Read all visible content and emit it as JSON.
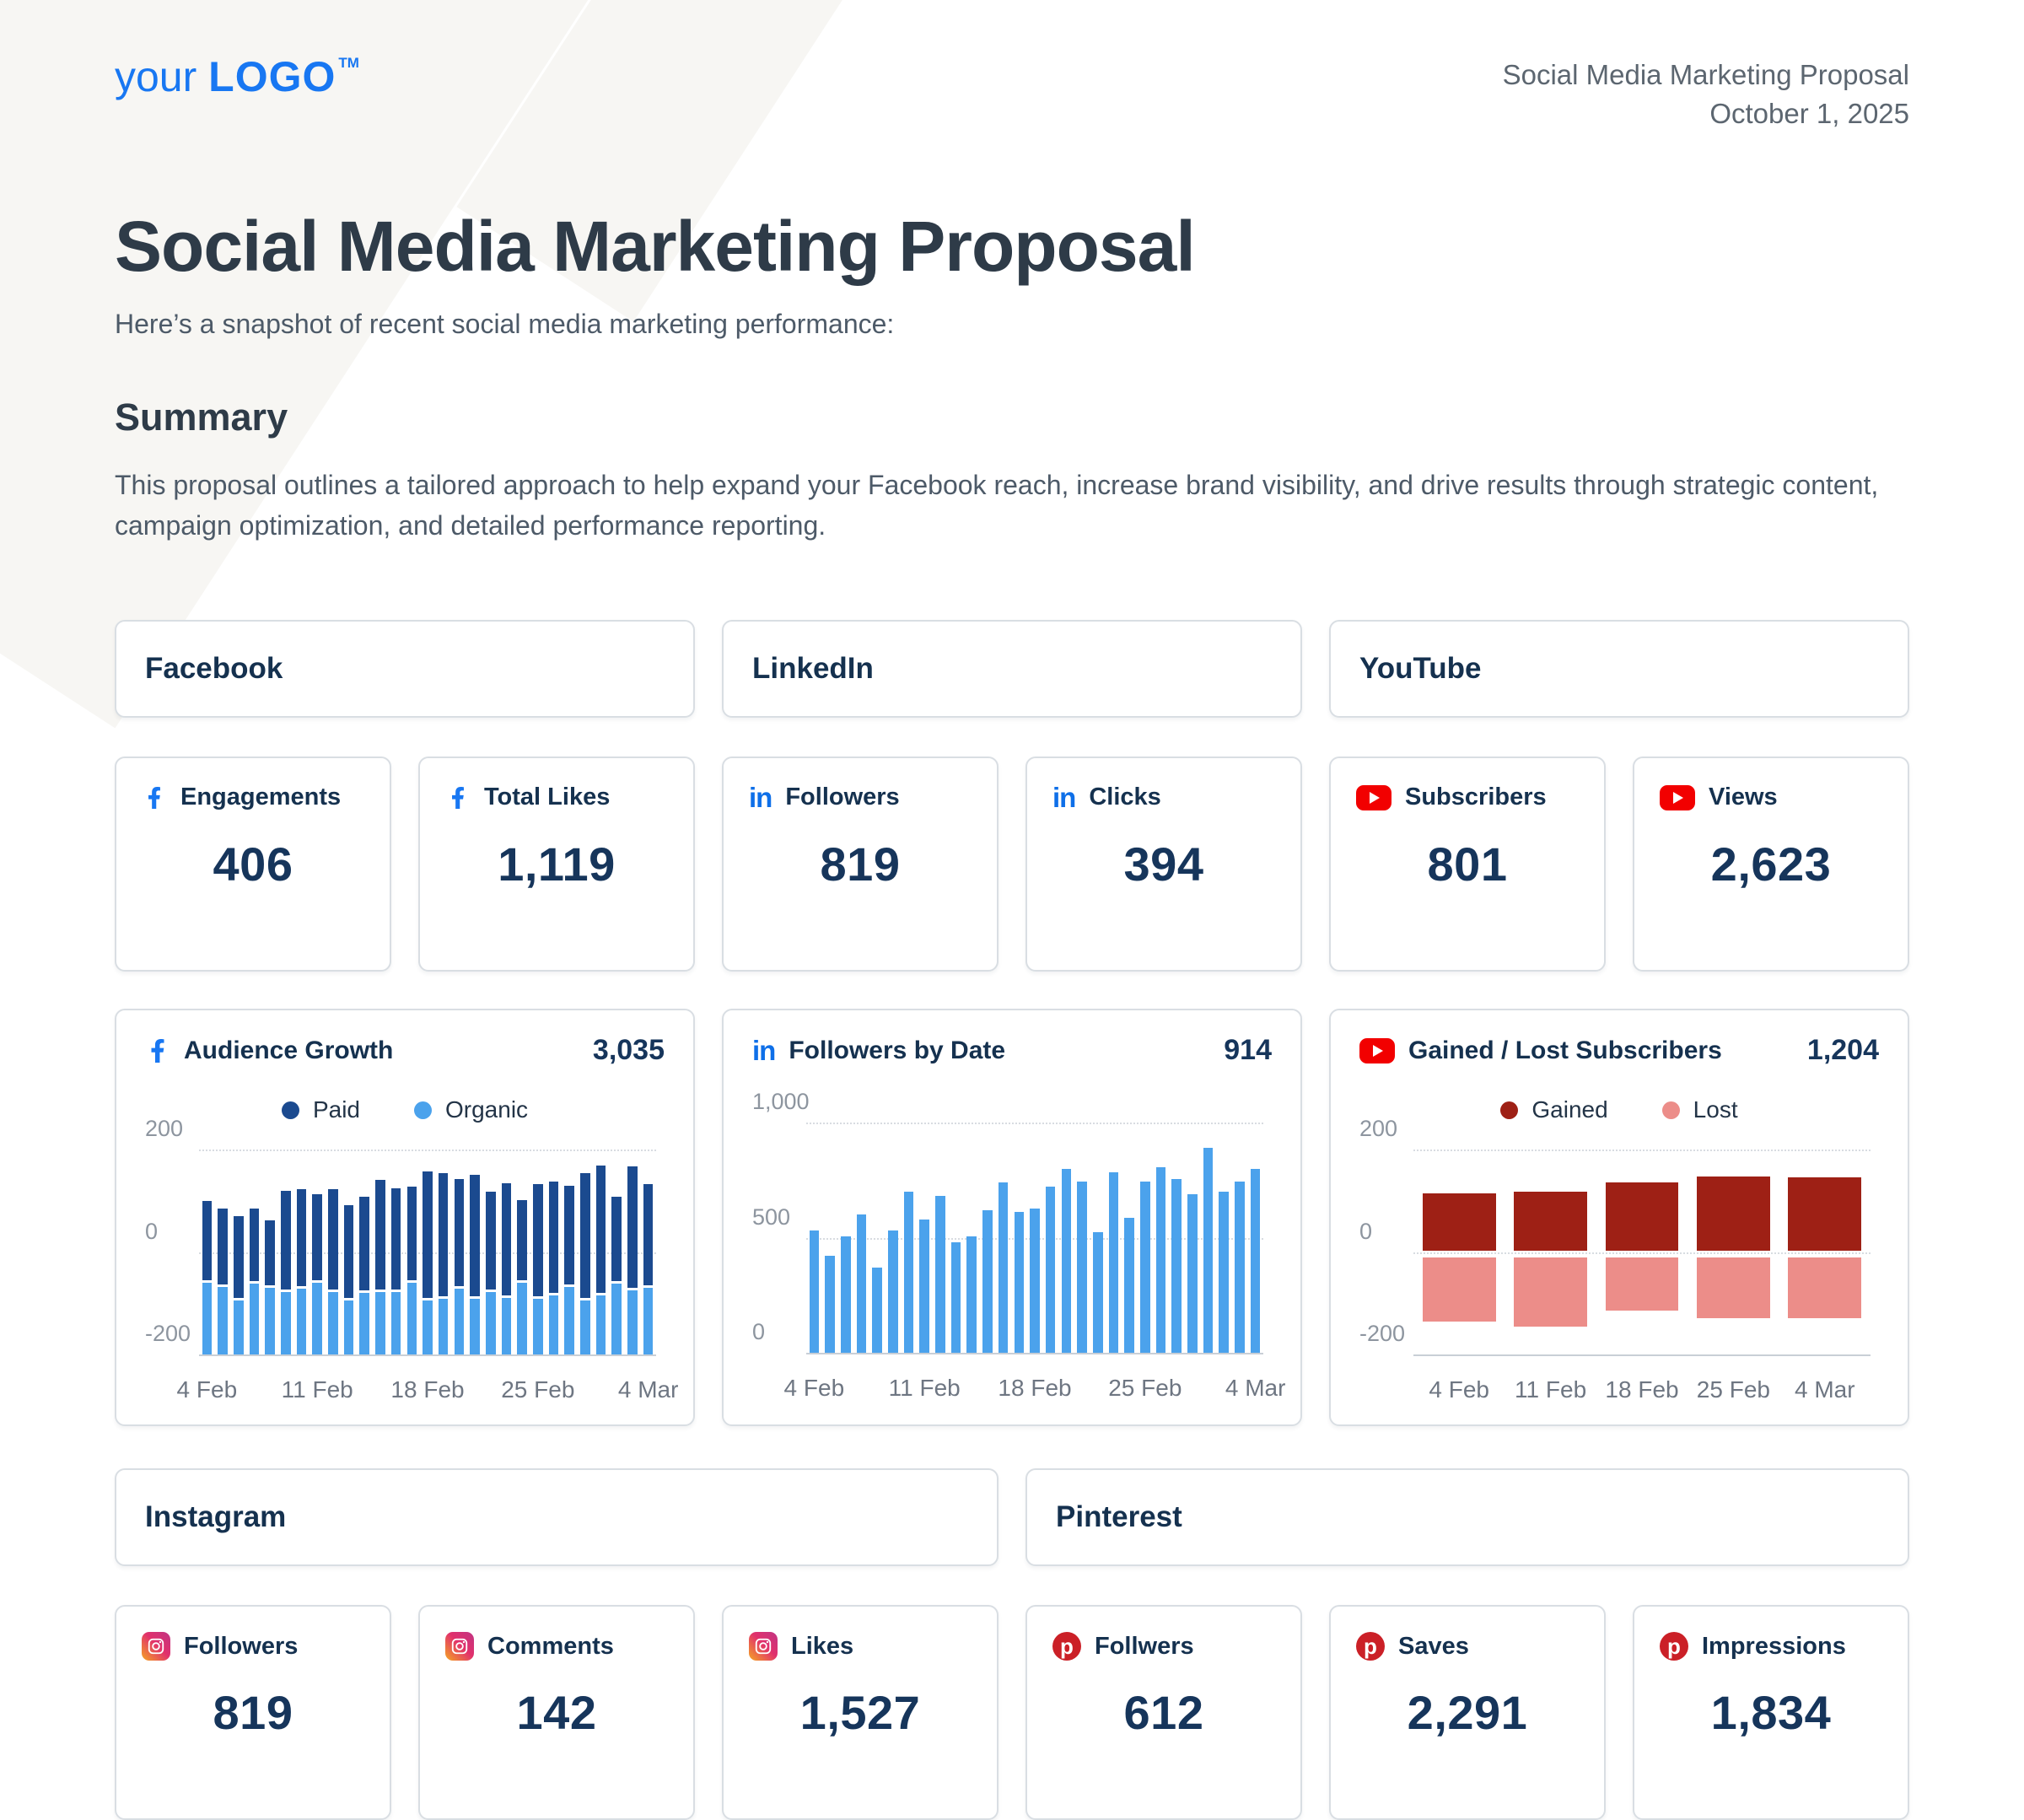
{
  "brand": {
    "logo_prefix": "your",
    "logo_word": "LOGO",
    "logo_tm": "TM"
  },
  "doc_header": {
    "title": "Social Media Marketing Proposal",
    "date": "October 1, 2025"
  },
  "intro": {
    "title": "Social Media Marketing Proposal",
    "subtitle": "Here’s a snapshot of recent social media marketing performance:"
  },
  "summary": {
    "heading": "Summary",
    "body": "This proposal outlines a tailored approach to help expand your Facebook reach, increase brand visibility, and drive results through strategic content, campaign optimization, and detailed performance reporting."
  },
  "icons": {
    "linkedin_glyph": "in",
    "pinterest_glyph": "p"
  },
  "platform_sections": [
    {
      "label": "Facebook"
    },
    {
      "label": "LinkedIn"
    },
    {
      "label": "YouTube"
    },
    {
      "label": "Instagram"
    },
    {
      "label": "Pinterest"
    }
  ],
  "stat_cards_top": [
    {
      "platform": "facebook",
      "label": "Engagements",
      "value": "406"
    },
    {
      "platform": "facebook",
      "label": "Total Likes",
      "value": "1,119"
    },
    {
      "platform": "linkedin",
      "label": "Followers",
      "value": "819"
    },
    {
      "platform": "linkedin",
      "label": "Clicks",
      "value": "394"
    },
    {
      "platform": "youtube",
      "label": "Subscribers",
      "value": "801"
    },
    {
      "platform": "youtube",
      "label": "Views",
      "value": "2,623"
    }
  ],
  "stat_cards_bottom": [
    {
      "platform": "instagram",
      "label": "Followers",
      "value": "819"
    },
    {
      "platform": "instagram",
      "label": "Comments",
      "value": "142"
    },
    {
      "platform": "instagram",
      "label": "Likes",
      "value": "1,527"
    },
    {
      "platform": "pinterest",
      "label": "Follwers",
      "value": "612"
    },
    {
      "platform": "pinterest",
      "label": "Saves",
      "value": "2,291"
    },
    {
      "platform": "pinterest",
      "label": "Impressions",
      "value": "1,834"
    }
  ],
  "chart_data": [
    {
      "type": "bar",
      "variant": "stacked_posneg",
      "platform": "facebook",
      "title": "Audience Growth",
      "total": "3,035",
      "legend": [
        "Paid",
        "Organic"
      ],
      "series_colors": [
        "#1B4A8F",
        "#4BA2EC"
      ],
      "ylim": [
        -200,
        200
      ],
      "yticks": [
        {
          "label": "200",
          "v": 200
        },
        {
          "label": "0",
          "v": 0
        },
        {
          "label": "-200",
          "v": -200,
          "solid": true
        }
      ],
      "x_count": 29,
      "xticks": [
        "4 Feb",
        "11 Feb",
        "18 Feb",
        "25 Feb",
        "4 Mar"
      ],
      "tick_index": [
        0,
        7,
        14,
        21,
        28
      ],
      "stack_base": -200,
      "note": "Paid values are bar top edges; Organic values are the segment boundary; stack base is -200.",
      "series": [
        {
          "name": "Paid",
          "values": [
            100,
            85,
            70,
            85,
            62,
            120,
            122,
            112,
            122,
            92,
            108,
            140,
            125,
            128,
            158,
            154,
            143,
            150,
            118,
            134,
            101,
            132,
            138,
            129,
            154,
            168,
            108,
            167,
            133
          ]
        },
        {
          "name": "Organic",
          "values": [
            -60,
            -68,
            -95,
            -62,
            -70,
            -78,
            -72,
            -60,
            -78,
            -95,
            -80,
            -78,
            -78,
            -60,
            -95,
            -91,
            -72,
            -91,
            -79,
            -90,
            -60,
            -91,
            -85,
            -69,
            -94,
            -85,
            -62,
            -75,
            -70
          ]
        }
      ]
    },
    {
      "type": "bar",
      "variant": "simple",
      "platform": "linkedin",
      "title": "Followers by Date",
      "total": "914",
      "series_colors": [
        "#4BA2EC"
      ],
      "ylim": [
        0,
        1000
      ],
      "yticks": [
        {
          "label": "1,000",
          "v": 1000
        },
        {
          "label": "500",
          "v": 500
        },
        {
          "label": "0",
          "v": 0,
          "solid": true
        }
      ],
      "x_count": 29,
      "xticks": [
        "4 Feb",
        "11 Feb",
        "18 Feb",
        "25 Feb",
        "4 Mar"
      ],
      "tick_index": [
        0,
        7,
        14,
        21,
        28
      ],
      "values": [
        530,
        420,
        505,
        600,
        370,
        530,
        700,
        580,
        680,
        480,
        505,
        620,
        740,
        610,
        625,
        720,
        800,
        745,
        525,
        785,
        585,
        745,
        805,
        755,
        690,
        890,
        700,
        745,
        800
      ]
    },
    {
      "type": "bar",
      "variant": "grouped_posneg",
      "platform": "youtube",
      "title": "Gained / Lost Subscribers",
      "total": "1,204",
      "legend": [
        "Gained",
        "Lost"
      ],
      "series_colors": [
        "#9E2015",
        "#EC8D89"
      ],
      "ylim": [
        -200,
        200
      ],
      "yticks": [
        {
          "label": "200",
          "v": 200
        },
        {
          "label": "0",
          "v": 0
        },
        {
          "label": "-200",
          "v": -200,
          "solid": true
        }
      ],
      "x_count": 5,
      "xticks": [
        "4 Feb",
        "11 Feb",
        "18 Feb",
        "25 Feb",
        "4 Mar"
      ],
      "tick_index": [
        0,
        1,
        2,
        3,
        4
      ],
      "series": [
        {
          "name": "Gained",
          "values": [
            115,
            118,
            135,
            148,
            145
          ]
        },
        {
          "name": "Lost",
          "values": [
            -135,
            -145,
            -115,
            -130,
            -130
          ]
        }
      ]
    }
  ],
  "colors": {
    "brand_blue": "#1877F2",
    "heading": "#2E3B48",
    "navy": "#16355B",
    "body_text": "#4D5A68",
    "meta_text": "#5C6670",
    "card_border": "#D9DEE3",
    "paid": "#1B4A8F",
    "organic": "#4BA2EC",
    "gained": "#9E2015",
    "lost": "#EC8D89",
    "youtube_red": "#F20000",
    "pinterest_red": "#CB2027",
    "linkedin_blue": "#0E6FE8"
  }
}
